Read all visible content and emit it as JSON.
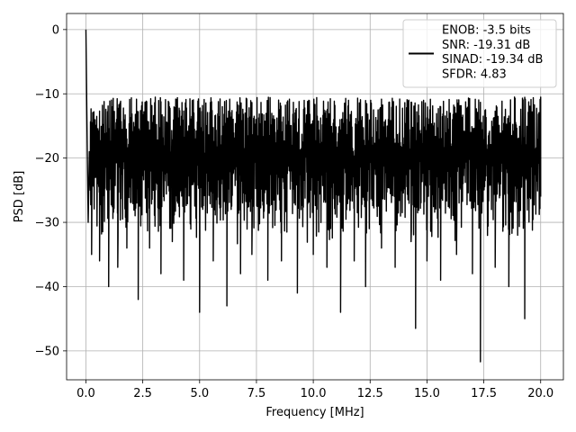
{
  "chart_data": {
    "type": "line",
    "title": "",
    "xlabel": "Frequency [MHz]",
    "ylabel": "PSD [dB]",
    "xlim": [
      -0.85,
      21.0
    ],
    "ylim": [
      -54.5,
      2.5
    ],
    "xticks": [
      0.0,
      2.5,
      5.0,
      7.5,
      10.0,
      12.5,
      15.0,
      17.5,
      20.0
    ],
    "xtick_labels": [
      "0.0",
      "2.5",
      "5.0",
      "7.5",
      "10.0",
      "12.5",
      "15.0",
      "17.5",
      "20.0"
    ],
    "yticks": [
      0,
      -10,
      -20,
      -30,
      -40,
      -50
    ],
    "ytick_labels": [
      "0",
      "−10",
      "−20",
      "−30",
      "−40",
      "−50"
    ],
    "grid": true,
    "legend_position": "top-right",
    "series": [
      {
        "color": "#000000",
        "x": [
          0.0,
          0.05,
          0.1,
          0.15,
          0.25,
          0.4,
          0.6,
          0.8,
          1.0,
          1.2,
          1.4,
          1.6,
          1.8,
          2.0,
          2.3,
          2.5,
          2.8,
          3.0,
          3.3,
          3.5,
          3.8,
          4.0,
          4.3,
          4.7,
          5.0,
          5.3,
          5.6,
          6.0,
          6.2,
          6.5,
          6.8,
          7.0,
          7.3,
          7.6,
          8.0,
          8.3,
          8.6,
          9.0,
          9.3,
          9.6,
          10.0,
          10.3,
          10.6,
          10.9,
          11.2,
          11.5,
          11.8,
          12.0,
          12.3,
          12.6,
          13.0,
          13.3,
          13.6,
          14.0,
          14.3,
          14.5,
          14.8,
          15.0,
          15.3,
          15.6,
          16.0,
          16.3,
          16.6,
          17.0,
          17.35,
          17.6,
          18.0,
          18.3,
          18.6,
          19.0,
          19.3,
          19.6,
          20.0
        ],
        "y": [
          0.0,
          -16.0,
          -30.0,
          -19.0,
          -35.0,
          -22.0,
          -36.0,
          -19.0,
          -40.0,
          -21.0,
          -37.0,
          -20.0,
          -34.0,
          -18.0,
          -42.0,
          -21.0,
          -34.0,
          -16.0,
          -38.0,
          -20.0,
          -33.0,
          -15.0,
          -39.0,
          -19.0,
          -44.0,
          -17.0,
          -36.0,
          -12.0,
          -43.0,
          -18.0,
          -38.0,
          -13.0,
          -35.0,
          -20.0,
          -39.0,
          -14.0,
          -36.0,
          -18.0,
          -41.0,
          -15.0,
          -35.0,
          -18.0,
          -37.0,
          -14.0,
          -44.0,
          -19.0,
          -36.0,
          -15.0,
          -40.0,
          -18.0,
          -34.0,
          -14.0,
          -37.0,
          -20.0,
          -33.0,
          -46.5,
          -19.0,
          -36.0,
          -15.0,
          -39.0,
          -18.0,
          -35.0,
          -21.0,
          -38.0,
          -51.7,
          -16.0,
          -37.0,
          -19.0,
          -40.0,
          -17.0,
          -45.0,
          -20.0,
          -26.0
        ]
      }
    ],
    "legend": {
      "lines": [
        "ENOB: -3.5 bits",
        "SNR: -19.31 dB",
        "SINAD: -19.34 dB",
        "SFDR: 4.83"
      ]
    }
  }
}
